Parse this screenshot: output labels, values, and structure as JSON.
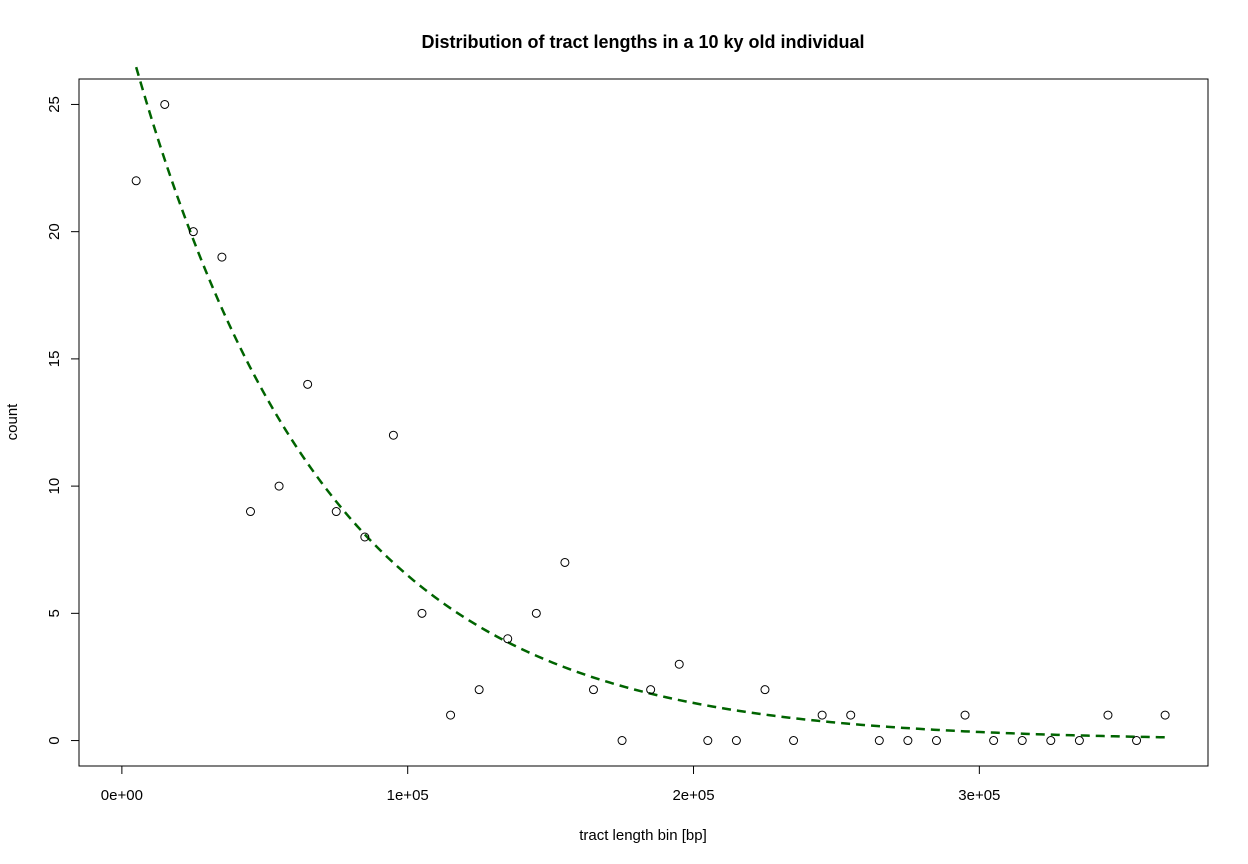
{
  "chart_data": {
    "type": "scatter",
    "title": "Distribution of tract lengths in a 10 ky old individual",
    "xlabel": "tract length bin [bp]",
    "ylabel": "count",
    "xlim": [
      -15000,
      380000
    ],
    "ylim": [
      -1,
      26
    ],
    "x_ticks": [
      0,
      100000,
      200000,
      300000
    ],
    "x_tick_labels": [
      "0e+00",
      "1e+05",
      "2e+05",
      "3e+05"
    ],
    "y_ticks": [
      0,
      5,
      10,
      15,
      20,
      25
    ],
    "y_tick_labels": [
      "0",
      "5",
      "10",
      "15",
      "20",
      "25"
    ],
    "grid": false,
    "series": [
      {
        "type": "scatter",
        "marker": "open-circle",
        "color": "#000000",
        "x": [
          5000,
          15000,
          25000,
          35000,
          45000,
          55000,
          65000,
          75000,
          85000,
          95000,
          105000,
          115000,
          125000,
          135000,
          145000,
          155000,
          165000,
          175000,
          185000,
          195000,
          205000,
          215000,
          225000,
          235000,
          245000,
          255000,
          265000,
          275000,
          285000,
          295000,
          305000,
          315000,
          325000,
          335000,
          345000,
          355000,
          365000
        ],
        "y": [
          22,
          25,
          20,
          19,
          9,
          10,
          14,
          9,
          8,
          12,
          5,
          1,
          2,
          4,
          5,
          7,
          2,
          0,
          2,
          3,
          0,
          0,
          2,
          0,
          1,
          1,
          0,
          0,
          0,
          1,
          0,
          0,
          0,
          0,
          1,
          0,
          1
        ]
      },
      {
        "type": "line",
        "style": "dashed",
        "color": "#006400",
        "fit": "exponential",
        "a": 28.5,
        "rate": 1.48e-05,
        "x_range": [
          5000,
          365000
        ]
      }
    ]
  }
}
